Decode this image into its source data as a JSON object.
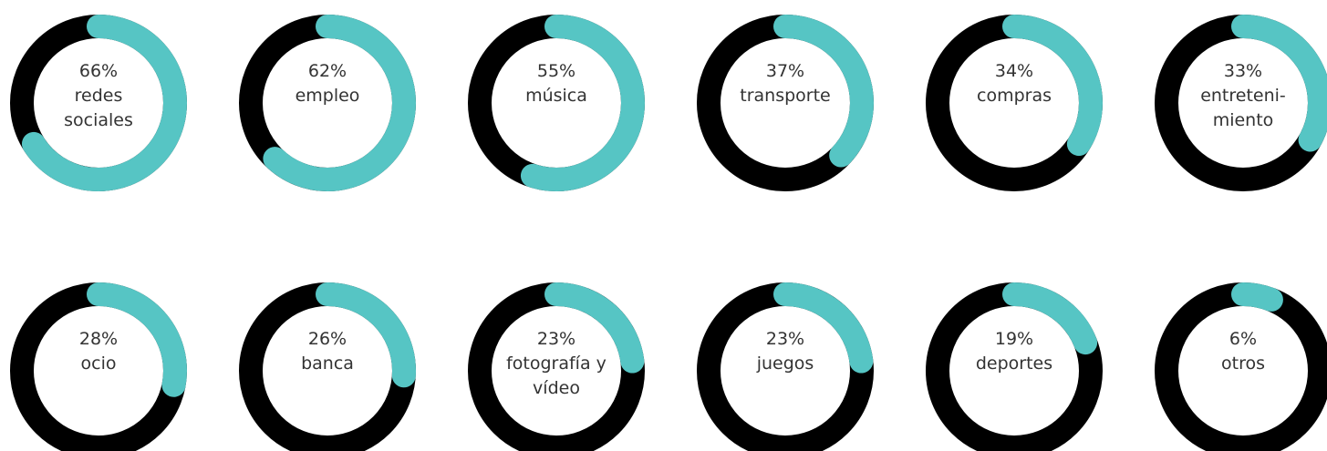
{
  "chart_data": {
    "type": "donut",
    "categories": [
      "redes sociales",
      "empleo",
      "música",
      "transporte",
      "compras",
      "entreteni-miento",
      "ocio",
      "banca",
      "fotografía y vídeo",
      "juegos",
      "deportes",
      "otros"
    ],
    "values": [
      66,
      62,
      55,
      37,
      34,
      33,
      28,
      26,
      23,
      23,
      19,
      6
    ],
    "value_labels": [
      "66%",
      "62%",
      "55%",
      "37%",
      "34%",
      "33%",
      "28%",
      "26%",
      "23%",
      "23%",
      "19%",
      "6%"
    ],
    "color": "#56c5c4",
    "track_color": "#000000"
  }
}
